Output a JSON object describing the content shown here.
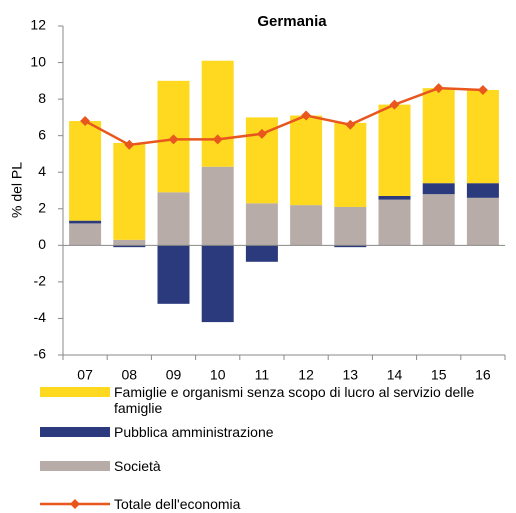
{
  "chart_data": {
    "type": "bar",
    "title": "Germania",
    "y_label": "% del PL",
    "categories": [
      "07",
      "08",
      "09",
      "10",
      "11",
      "12",
      "13",
      "14",
      "15",
      "16"
    ],
    "series": [
      {
        "name": "Società",
        "color": "#b7aca7",
        "values": [
          1.2,
          0.3,
          2.9,
          4.3,
          2.3,
          2.2,
          2.1,
          2.5,
          2.8,
          2.6
        ]
      },
      {
        "name": "Pubblica amministrazione",
        "color": "#2b3a7c",
        "values": [
          0.15,
          -0.1,
          -3.2,
          -4.2,
          -0.9,
          0,
          -0.1,
          0.2,
          0.6,
          0.8
        ]
      },
      {
        "name": "Famiglie e organismi senza scopo di lucro al servizio delle famiglie",
        "color": "#ffd91f",
        "values": [
          5.45,
          5.3,
          6.1,
          5.8,
          4.7,
          4.9,
          4.6,
          5.0,
          5.2,
          5.1
        ]
      },
      {
        "name": "Totale dell'economia",
        "type": "line",
        "color": "#e8571e",
        "values": [
          6.8,
          5.5,
          5.8,
          5.8,
          6.1,
          7.1,
          6.6,
          7.7,
          8.6,
          8.5
        ]
      }
    ],
    "legend_order": [
      2,
      1,
      0,
      3
    ],
    "ylim": [
      -6,
      12
    ],
    "yticks": [
      -6,
      -4,
      -2,
      0,
      2,
      4,
      6,
      8,
      10,
      12
    ]
  }
}
